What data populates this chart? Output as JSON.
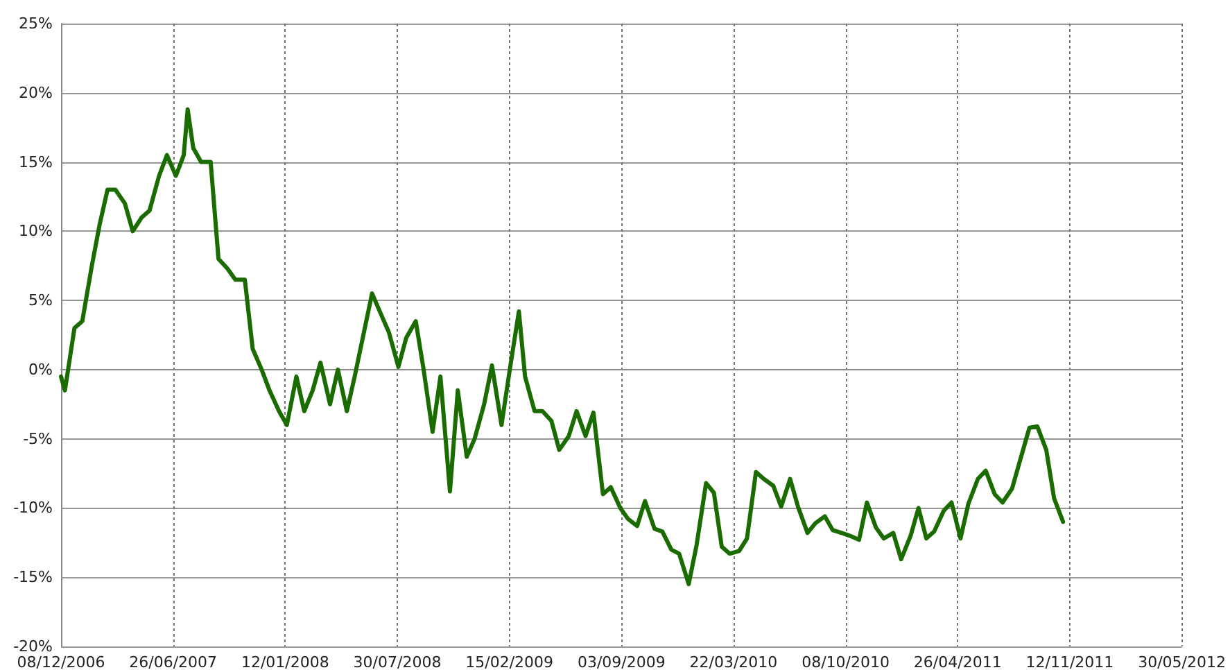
{
  "chart_data": {
    "type": "line",
    "x": [
      "2006-12-08",
      "2006-12-15",
      "2007-01-01",
      "2007-01-15",
      "2007-02-01",
      "2007-02-15",
      "2007-03-01",
      "2007-03-15",
      "2007-04-01",
      "2007-04-15",
      "2007-05-01",
      "2007-05-15",
      "2007-06-01",
      "2007-06-15",
      "2007-07-01",
      "2007-07-15",
      "2007-07-22",
      "2007-08-01",
      "2007-08-15",
      "2007-09-01",
      "2007-09-15",
      "2007-10-01",
      "2007-10-15",
      "2007-11-01",
      "2007-11-15",
      "2007-12-01",
      "2007-12-15",
      "2008-01-01",
      "2008-01-15",
      "2008-02-01",
      "2008-02-15",
      "2008-03-01",
      "2008-03-15",
      "2008-04-01",
      "2008-04-15",
      "2008-05-01",
      "2008-05-15",
      "2008-06-01",
      "2008-06-15",
      "2008-07-01",
      "2008-07-15",
      "2008-08-01",
      "2008-08-15",
      "2008-09-01",
      "2008-09-15",
      "2008-10-01",
      "2008-10-15",
      "2008-11-01",
      "2008-11-15",
      "2008-12-01",
      "2008-12-15",
      "2009-01-01",
      "2009-01-15",
      "2009-02-01",
      "2009-02-15",
      "2009-03-04",
      "2009-03-15",
      "2009-04-01",
      "2009-04-15",
      "2009-05-01",
      "2009-05-15",
      "2009-06-01",
      "2009-06-15",
      "2009-07-01",
      "2009-07-15",
      "2009-08-01",
      "2009-08-15",
      "2009-09-01",
      "2009-09-15",
      "2009-10-01",
      "2009-10-15",
      "2009-11-01",
      "2009-11-15",
      "2009-12-01",
      "2009-12-15",
      "2010-01-01",
      "2010-01-15",
      "2010-02-01",
      "2010-02-15",
      "2010-03-01",
      "2010-03-15",
      "2010-04-01",
      "2010-04-15",
      "2010-05-01",
      "2010-05-15",
      "2010-06-01",
      "2010-06-15",
      "2010-07-01",
      "2010-07-15",
      "2010-08-01",
      "2010-08-15",
      "2010-09-01",
      "2010-09-15",
      "2010-10-01",
      "2010-10-15",
      "2010-11-01",
      "2010-11-15",
      "2010-12-01",
      "2010-12-15",
      "2011-01-01",
      "2011-01-15",
      "2011-02-01",
      "2011-02-15",
      "2011-03-01",
      "2011-03-15",
      "2011-04-01",
      "2011-04-15",
      "2011-05-01",
      "2011-05-15",
      "2011-06-01",
      "2011-06-15",
      "2011-07-01",
      "2011-07-15",
      "2011-08-01",
      "2011-08-15",
      "2011-09-01",
      "2011-09-15",
      "2011-10-01",
      "2011-10-15",
      "2011-10-31"
    ],
    "series": [
      {
        "color": "#1a6b00",
        "values": [
          -0.5,
          -1.5,
          3,
          3.5,
          7.5,
          10.5,
          13,
          13,
          12,
          10,
          11,
          11.5,
          14,
          15.5,
          14,
          15.5,
          18.8,
          16,
          15,
          15,
          8,
          7.3,
          6.5,
          6.5,
          1.5,
          0,
          -1.5,
          -3,
          -4,
          -0.5,
          -3,
          -1.5,
          0.5,
          -2.5,
          0,
          -3,
          -0.5,
          2.8,
          5.5,
          4,
          2.7,
          0.2,
          2.3,
          3.5,
          0,
          -4.5,
          -0.5,
          -8.8,
          -1.5,
          -6.3,
          -5,
          -2.5,
          0.3,
          -4,
          -0.2,
          4.2,
          -0.5,
          -3,
          -3,
          -3.7,
          -5.8,
          -4.8,
          -3,
          -4.8,
          -3.1,
          -9,
          -8.5,
          -10,
          -10.8,
          -11.3,
          -9.5,
          -11.5,
          -11.7,
          -13,
          -13.3,
          -15.5,
          -12.7,
          -8.2,
          -8.9,
          -12.8,
          -13.3,
          -13.1,
          -12.2,
          -7.4,
          -7.9,
          -8.4,
          -9.9,
          -7.9,
          -9.9,
          -11.8,
          -11.1,
          -10.6,
          -11.6,
          -11.8,
          -12,
          -12.3,
          -9.6,
          -11.4,
          -12.2,
          -11.8,
          -13.7,
          -12,
          -10,
          -12.2,
          -11.7,
          -10.2,
          -9.6,
          -12.2,
          -9.7,
          -7.9,
          -7.3,
          -9,
          -9.6,
          -8.6,
          -6.6,
          -4.2,
          -4.1,
          -5.8,
          -9.3,
          -11
        ]
      }
    ],
    "xlim": [
      "2006-12-08",
      "2012-05-30"
    ],
    "xticks": [
      {
        "value": "2006-12-08",
        "label": "08/12/2006"
      },
      {
        "value": "2007-06-26",
        "label": "26/06/2007"
      },
      {
        "value": "2008-01-12",
        "label": "12/01/2008"
      },
      {
        "value": "2008-07-30",
        "label": "30/07/2008"
      },
      {
        "value": "2009-02-15",
        "label": "15/02/2009"
      },
      {
        "value": "2009-09-03",
        "label": "03/09/2009"
      },
      {
        "value": "2010-03-22",
        "label": "22/03/2010"
      },
      {
        "value": "2010-10-08",
        "label": "08/10/2010"
      },
      {
        "value": "2011-04-26",
        "label": "26/04/2011"
      },
      {
        "value": "2011-11-12",
        "label": "12/11/2011"
      },
      {
        "value": "2012-05-30",
        "label": "30/05/2012"
      }
    ],
    "ylim": [
      -20,
      25
    ],
    "yticks": [
      {
        "value": -20,
        "label": "-20%"
      },
      {
        "value": -15,
        "label": "-15%"
      },
      {
        "value": -10,
        "label": "-10%"
      },
      {
        "value": -5,
        "label": "-5%"
      },
      {
        "value": 0,
        "label": "0%"
      },
      {
        "value": 5,
        "label": "5%"
      },
      {
        "value": 10,
        "label": "10%"
      },
      {
        "value": 15,
        "label": "15%"
      },
      {
        "value": 20,
        "label": "20%"
      },
      {
        "value": 25,
        "label": "25%"
      }
    ],
    "grid": true,
    "marker": "none",
    "line_style": "solid"
  }
}
